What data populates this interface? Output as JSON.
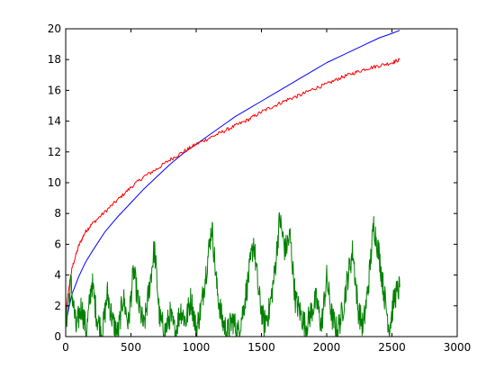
{
  "chart_data": {
    "type": "line",
    "title": "",
    "xlabel": "",
    "ylabel": "",
    "xlim": [
      0,
      3000
    ],
    "ylim": [
      0,
      20
    ],
    "xticks": [
      0,
      500,
      1000,
      1500,
      2000,
      2500,
      3000
    ],
    "yticks": [
      0,
      2,
      4,
      6,
      8,
      10,
      12,
      14,
      16,
      18,
      20
    ],
    "grid": false,
    "legend": "none",
    "series": [
      {
        "color": "#0000ff",
        "style": "smooth",
        "x": [
          0,
          25,
          50,
          100,
          150,
          200,
          300,
          400,
          500,
          600,
          700,
          800,
          900,
          1000,
          1100,
          1200,
          1300,
          1400,
          1500,
          1600,
          1700,
          1800,
          1900,
          2000,
          2100,
          2200,
          2300,
          2400,
          2500,
          2560
        ],
        "values": [
          0.8,
          1.9,
          2.8,
          3.9,
          4.8,
          5.5,
          6.8,
          7.8,
          8.7,
          9.6,
          10.4,
          11.2,
          11.9,
          12.5,
          13.1,
          13.7,
          14.3,
          14.8,
          15.3,
          15.8,
          16.3,
          16.8,
          17.3,
          17.8,
          18.2,
          18.6,
          19.0,
          19.4,
          19.7,
          19.9
        ]
      },
      {
        "color": "#ff0000",
        "style": "jagged",
        "x": [
          0,
          25,
          50,
          100,
          150,
          200,
          300,
          400,
          500,
          600,
          700,
          800,
          900,
          1000,
          1100,
          1200,
          1300,
          1400,
          1500,
          1600,
          1700,
          1800,
          1900,
          2000,
          2100,
          2200,
          2300,
          2400,
          2500,
          2560
        ],
        "values": [
          1.5,
          3.2,
          4.5,
          5.9,
          6.8,
          7.3,
          8.1,
          8.9,
          9.7,
          10.4,
          10.9,
          11.5,
          12.0,
          12.5,
          12.9,
          13.3,
          13.7,
          14.1,
          14.6,
          15.0,
          15.4,
          15.7,
          16.1,
          16.4,
          16.8,
          17.1,
          17.4,
          17.6,
          17.8,
          18.0
        ]
      },
      {
        "color": "#008000",
        "style": "jagged",
        "x": [
          0,
          40,
          80,
          120,
          160,
          200,
          240,
          280,
          320,
          360,
          400,
          440,
          480,
          520,
          560,
          600,
          640,
          680,
          720,
          760,
          800,
          840,
          880,
          920,
          960,
          1000,
          1040,
          1080,
          1120,
          1160,
          1200,
          1240,
          1280,
          1320,
          1360,
          1400,
          1440,
          1480,
          1520,
          1560,
          1600,
          1640,
          1680,
          1720,
          1760,
          1800,
          1840,
          1880,
          1920,
          1960,
          2000,
          2040,
          2080,
          2120,
          2160,
          2200,
          2240,
          2280,
          2320,
          2360,
          2400,
          2440,
          2480,
          2520,
          2560
        ],
        "values": [
          0.8,
          3.5,
          0.5,
          2.0,
          0.3,
          3.6,
          1.2,
          0.2,
          2.8,
          1.0,
          0.1,
          2.6,
          0.8,
          4.3,
          2.0,
          0.6,
          3.1,
          5.8,
          1.2,
          0.3,
          1.4,
          0.2,
          1.8,
          1.0,
          2.5,
          0.4,
          2.0,
          4.5,
          7.2,
          3.0,
          1.0,
          0.3,
          1.1,
          0.2,
          1.7,
          3.8,
          6.2,
          2.7,
          0.8,
          1.7,
          4.0,
          7.7,
          5.6,
          6.5,
          2.4,
          1.5,
          0.6,
          1.6,
          2.4,
          0.7,
          3.8,
          1.3,
          0.3,
          1.6,
          3.8,
          5.6,
          1.8,
          0.6,
          3.4,
          7.3,
          5.4,
          2.8,
          0.5,
          2.6,
          3.2
        ]
      }
    ]
  }
}
